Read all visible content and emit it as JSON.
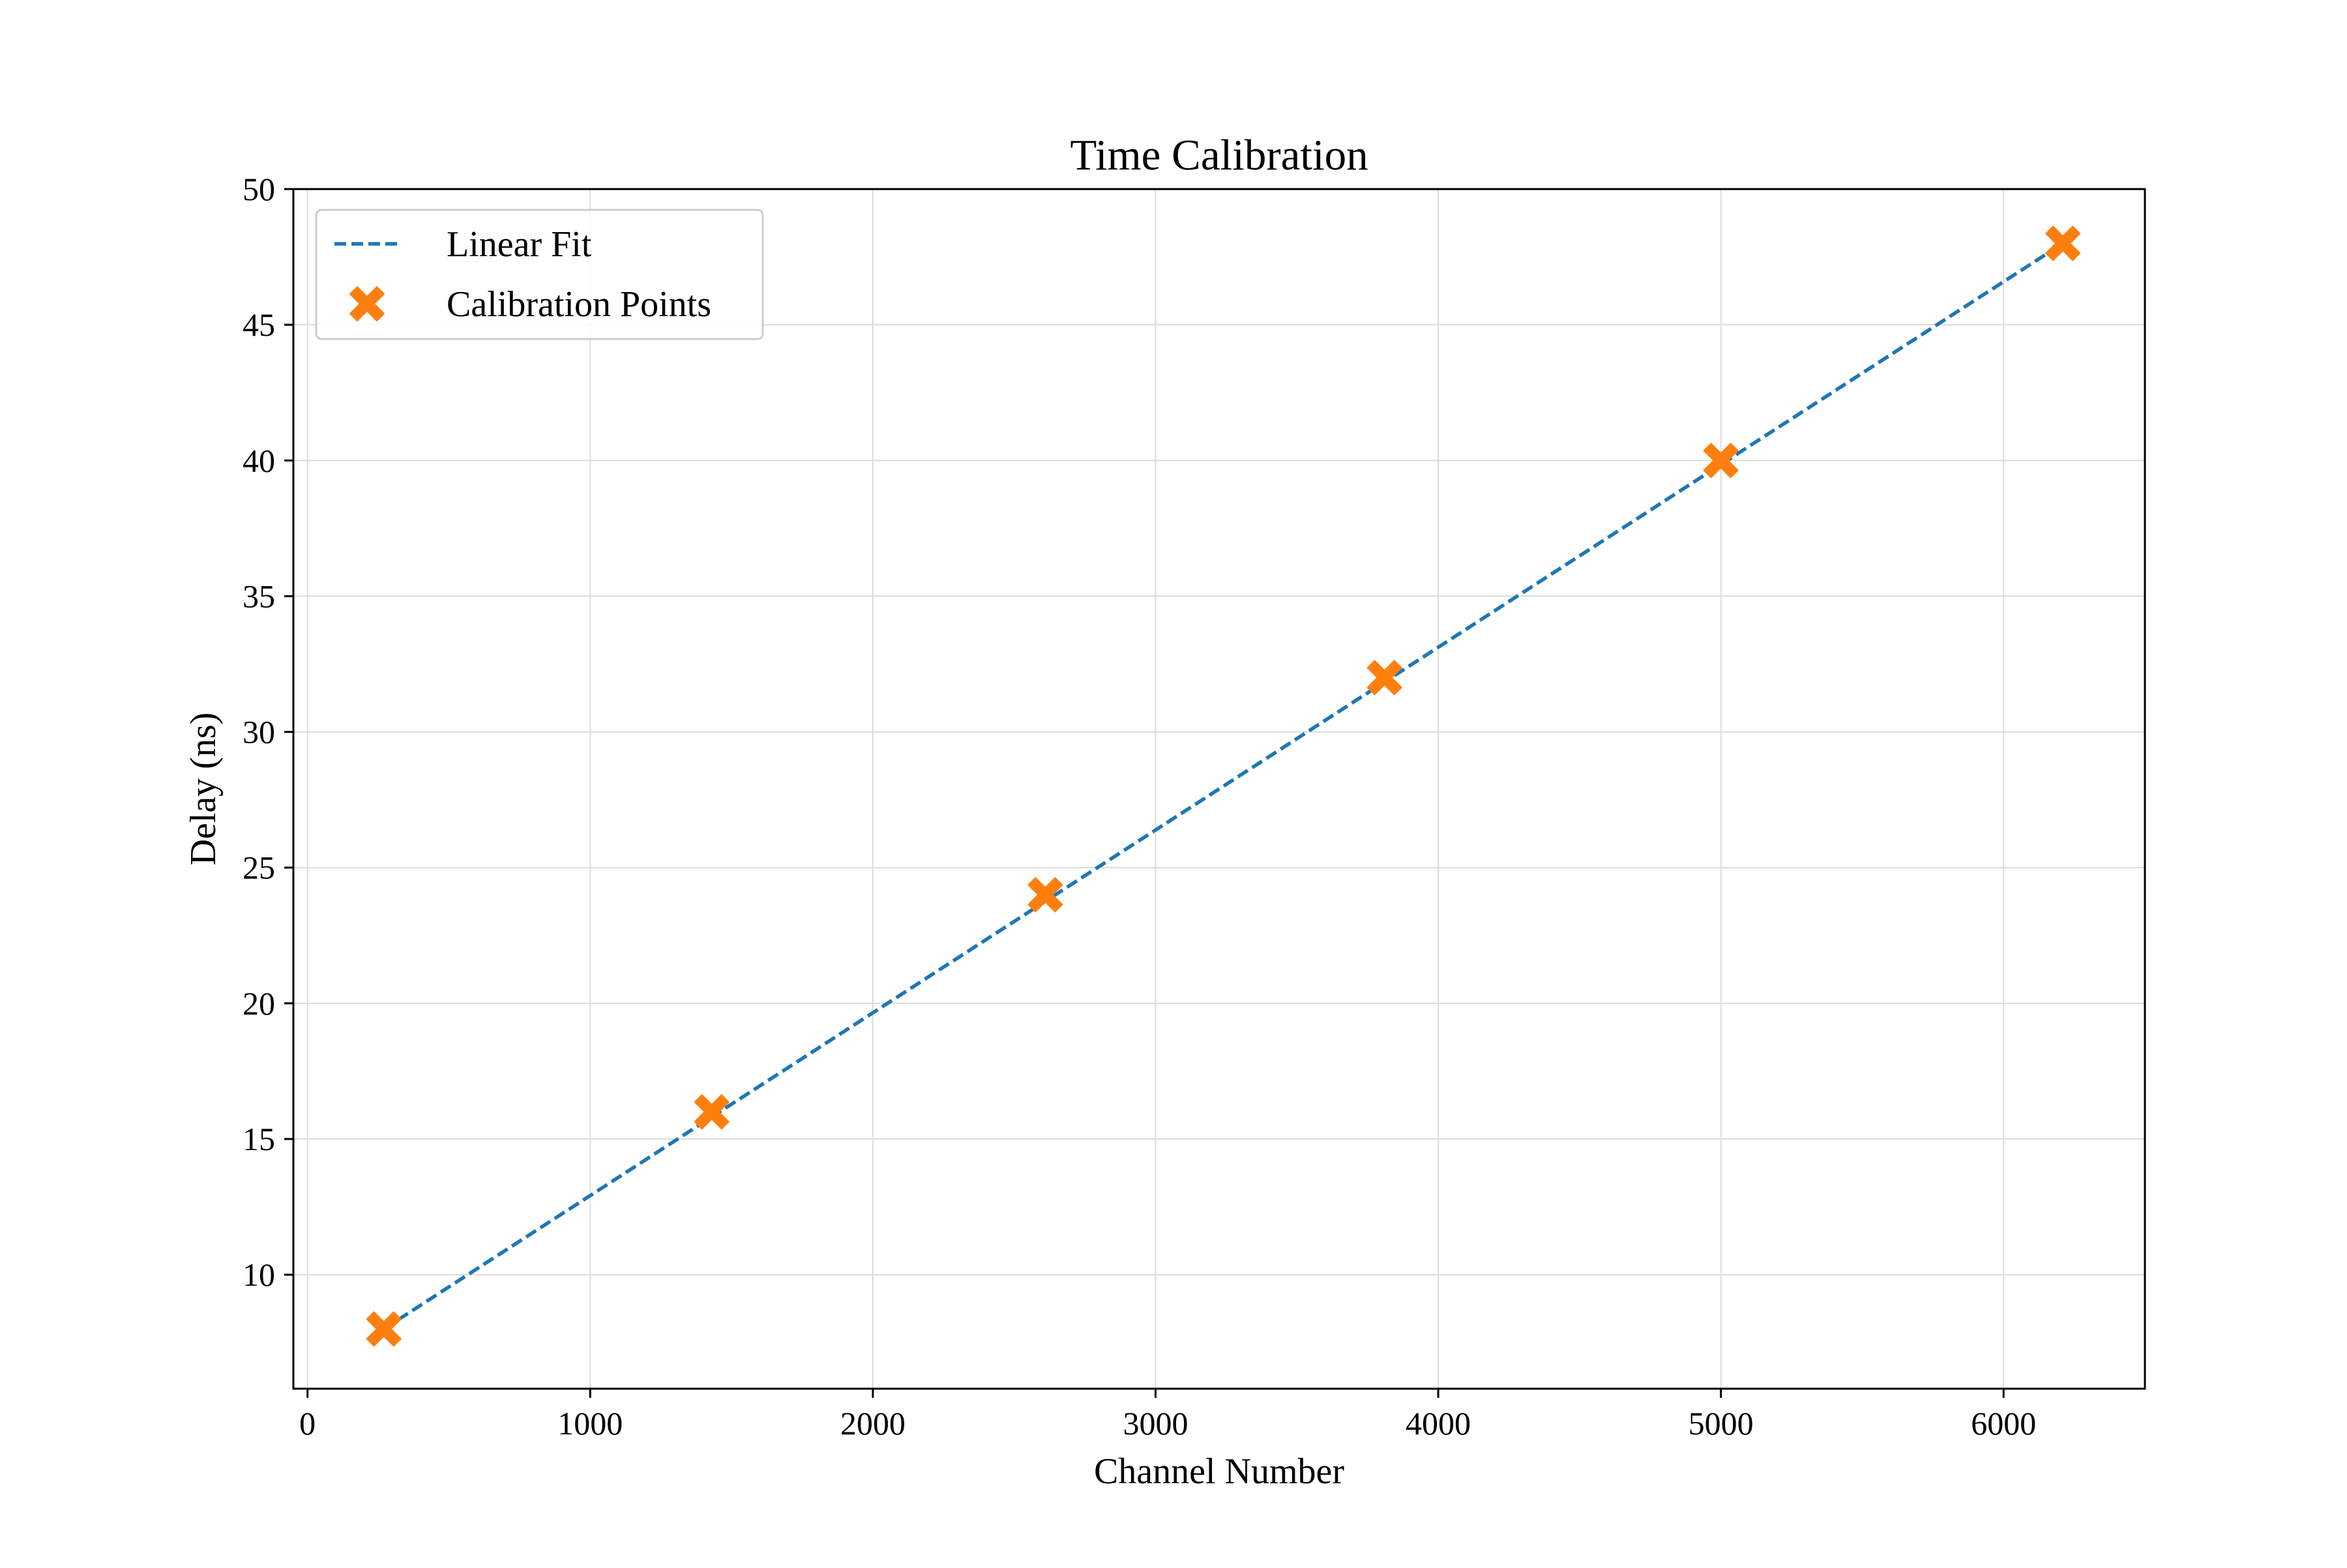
{
  "chart_data": {
    "type": "line",
    "title": "Time Calibration",
    "xlabel": "Channel Number",
    "ylabel": "Delay (ns)",
    "xlim": [
      -50,
      6500
    ],
    "ylim": [
      5.8,
      50
    ],
    "xticks": [
      0,
      1000,
      2000,
      3000,
      4000,
      5000,
      6000
    ],
    "yticks": [
      10,
      15,
      20,
      25,
      30,
      35,
      40,
      45,
      50
    ],
    "grid": true,
    "legend_position": "upper left",
    "series": [
      {
        "name": "Linear Fit",
        "kind": "line",
        "style": "dashed",
        "color": "#1f77b4",
        "x": [
          270,
          6210
        ],
        "y": [
          8,
          48
        ]
      },
      {
        "name": "Calibration Points",
        "kind": "scatter",
        "marker": "X",
        "color": "#ff7f0e",
        "x": [
          270,
          1430,
          2610,
          3810,
          5000,
          6210
        ],
        "y": [
          8,
          16,
          24,
          32,
          40,
          48
        ]
      }
    ]
  }
}
